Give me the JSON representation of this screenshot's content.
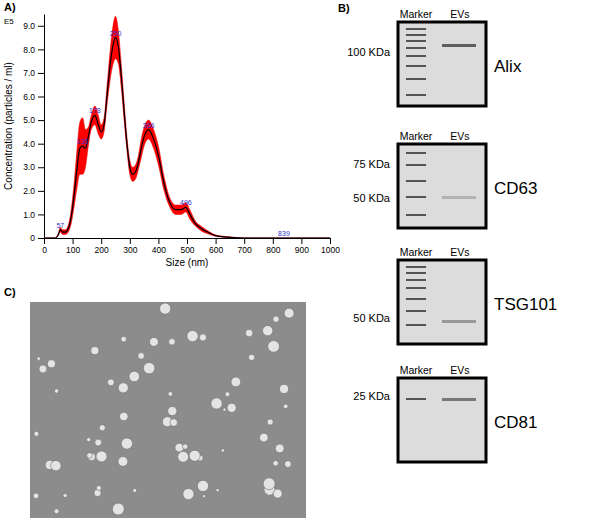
{
  "chart_data": {
    "type": "line",
    "panel": "A)",
    "y_multiplier": "E5",
    "x_label": "Size (nm)",
    "y_label": "Concentration (particles / ml)",
    "x": [
      0,
      40,
      50,
      57,
      65,
      75,
      85,
      95,
      105,
      115,
      125,
      135,
      145,
      155,
      165,
      178,
      190,
      200,
      210,
      220,
      230,
      240,
      250,
      260,
      270,
      280,
      290,
      300,
      310,
      320,
      330,
      340,
      350,
      366,
      380,
      400,
      420,
      440,
      460,
      480,
      496,
      510,
      530,
      550,
      580,
      600,
      650,
      700,
      839,
      1000
    ],
    "series": [
      {
        "color": "#000000",
        "values": [
          0,
          0,
          0.15,
          0.35,
          0.25,
          0.25,
          0.4,
          0.9,
          1.8,
          2.9,
          3.8,
          3.9,
          3.8,
          4.3,
          4.9,
          5.2,
          4.8,
          4.5,
          4.8,
          6.0,
          7.2,
          8.1,
          8.5,
          8.1,
          6.9,
          5.4,
          4.0,
          3.0,
          2.7,
          2.8,
          3.2,
          3.8,
          4.3,
          4.6,
          4.3,
          3.5,
          2.3,
          1.5,
          1.2,
          1.2,
          1.3,
          1.0,
          0.6,
          0.4,
          0.2,
          0.1,
          0.03,
          0,
          0,
          0
        ],
        "error": [
          0,
          0,
          0.05,
          0.1,
          0.1,
          0.1,
          0.15,
          0.3,
          0.5,
          0.8,
          1.1,
          1.2,
          0.8,
          0.4,
          0.3,
          0.4,
          0.4,
          0.3,
          0.3,
          0.4,
          0.6,
          0.8,
          0.9,
          0.7,
          0.5,
          0.4,
          0.3,
          0.3,
          0.3,
          0.3,
          0.3,
          0.4,
          0.4,
          0.4,
          0.4,
          0.4,
          0.3,
          0.2,
          0.2,
          0.2,
          0.2,
          0.2,
          0.1,
          0.1,
          0.05,
          0.03,
          0.02,
          0,
          0,
          0
        ]
      }
    ],
    "xlim": [
      0,
      1000
    ],
    "xticks": [
      0,
      100,
      200,
      300,
      400,
      500,
      600,
      700,
      800,
      900,
      1000
    ],
    "ylim": [
      0,
      9.5
    ],
    "yticks": [
      0,
      {
        "value": 1,
        "label": "1.0"
      },
      {
        "value": 2,
        "label": "2.0"
      },
      {
        "value": 3,
        "label": "3.0"
      },
      {
        "value": 4,
        "label": "4.0"
      },
      {
        "value": 5,
        "label": "5.0"
      },
      {
        "value": 6,
        "label": "6.0"
      },
      {
        "value": 7,
        "label": "7.0"
      },
      {
        "value": 8,
        "label": "8.0"
      },
      {
        "value": 9,
        "label": "9.0"
      }
    ],
    "grid": false,
    "annotations": [
      {
        "x": 57,
        "y": 0.35,
        "text": "57"
      },
      {
        "x": 135,
        "y": 3.9,
        "text": "135"
      },
      {
        "x": 178,
        "y": 5.2,
        "text": "178"
      },
      {
        "x": 250,
        "y": 8.5,
        "text": "250"
      },
      {
        "x": 366,
        "y": 4.6,
        "text": "366"
      },
      {
        "x": 496,
        "y": 1.3,
        "text": "496"
      },
      {
        "x": 839,
        "y": 0,
        "text": "839"
      }
    ]
  },
  "blots": {
    "panel": "B)",
    "headers": [
      "Marker",
      "EVs"
    ],
    "items": [
      {
        "protein": "Alix",
        "mw_labels": [
          "100 KDa"
        ]
      },
      {
        "protein": "CD63",
        "mw_labels": [
          "75 KDa",
          "50 KDa"
        ]
      },
      {
        "protein": "TSG101",
        "mw_labels": [
          "50 KDa"
        ]
      },
      {
        "protein": "CD81",
        "mw_labels": [
          "25 KDa"
        ]
      }
    ]
  },
  "micrograph": {
    "panel": "C)"
  }
}
